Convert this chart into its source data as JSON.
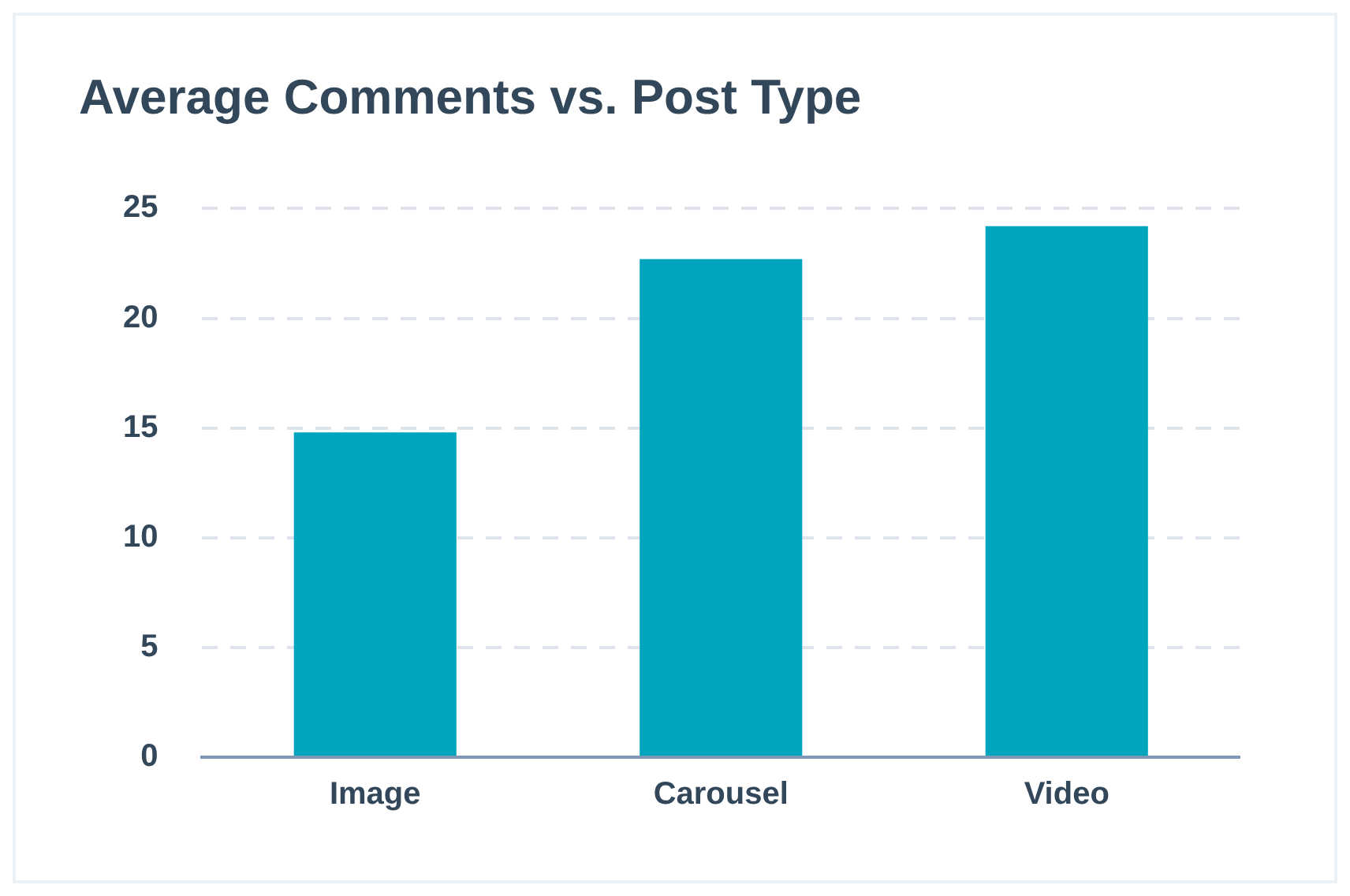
{
  "chart_data": {
    "type": "bar",
    "title": "Average Comments vs. Post Type",
    "categories": [
      "Image",
      "Carousel",
      "Video"
    ],
    "values": [
      14.8,
      22.7,
      24.2
    ],
    "color": "#00a4bd",
    "ylim": [
      0,
      25
    ],
    "yticks": [
      0,
      5,
      10,
      15,
      20,
      25
    ],
    "grid": "y"
  }
}
